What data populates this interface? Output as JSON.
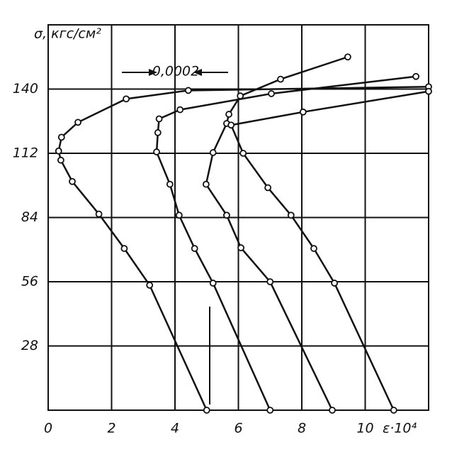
{
  "chart_data": {
    "type": "line",
    "y_label": "σ, кгс/см²",
    "x_label": "ε·10⁴",
    "annotation": "0,0002",
    "xlim": [
      0,
      12
    ],
    "xticks": [
      0,
      2,
      4,
      6,
      8,
      10
    ],
    "ylim": [
      0,
      168
    ],
    "yticks": [
      28,
      56,
      84,
      112,
      140
    ],
    "grid": true,
    "series": [
      {
        "color": "#111111",
        "x": [
          5.0,
          3.2,
          2.4,
          1.6,
          0.76,
          0.4,
          0.33,
          0.42,
          0.94,
          2.46,
          4.42,
          12
        ],
        "values": [
          0,
          54.5,
          70.5,
          85.5,
          99.7,
          109,
          113,
          119,
          125.5,
          135.7,
          139.4,
          141
        ]
      },
      {
        "color": "#111111",
        "x": [
          7.0,
          5.2,
          4.62,
          4.13,
          3.84,
          3.42,
          3.46,
          3.5,
          4.16,
          7.04,
          11.6
        ],
        "values": [
          0,
          55.4,
          70.5,
          85,
          98.5,
          112.6,
          121,
          127,
          131,
          138,
          145.5
        ]
      },
      {
        "color": "#111111",
        "x": [
          8.96,
          7.0,
          6.08,
          5.63,
          4.98,
          5.2,
          5.63,
          5.7,
          6.06,
          7.33,
          9.45
        ],
        "values": [
          0,
          56,
          70.8,
          85,
          98.5,
          112.3,
          125,
          129,
          137,
          144.3,
          154
        ]
      },
      {
        "color": "#111111",
        "x": [
          10.9,
          9.03,
          8.38,
          7.66,
          6.93,
          6.15,
          5.77,
          8.04,
          12
        ],
        "values": [
          0,
          55.4,
          70.5,
          85,
          97,
          112,
          124.3,
          130,
          139
        ]
      }
    ]
  }
}
